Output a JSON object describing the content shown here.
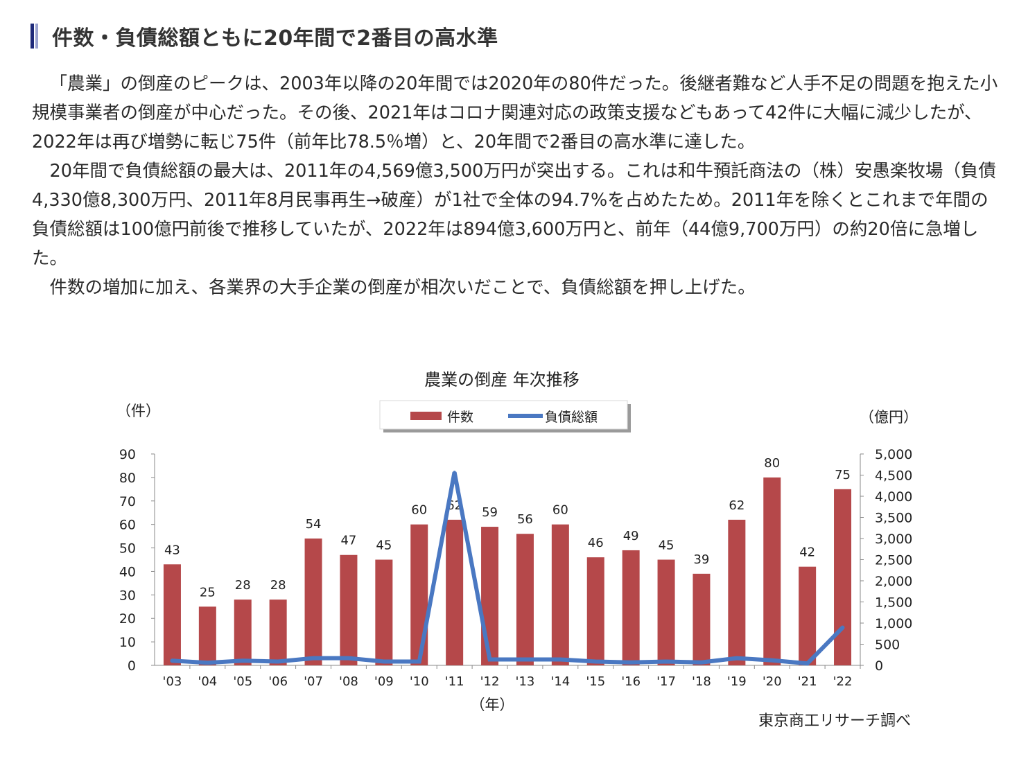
{
  "heading": "件数・負債総額ともに20年間で2番目の高水準",
  "paragraphs": [
    "「農業」の倒産のピークは、2003年以降の20年間では2020年の80件だった。後継者難など人手不足の問題を抱えた小規模事業者の倒産が中心だった。その後、2021年はコロナ関連対応の政策支援などもあって42件に大幅に減少したが、2022年は再び増勢に転じ75件（前年比78.5％増）と、20年間で2番目の高水準に達した。",
    "20年間で負債総額の最大は、2011年の4,569億3,500万円が突出する。これは和牛預託商法の（株）安愚楽牧場（負債4,330億8,300万円、2011年8月民事再生→破産）が1社で全体の94.7%を占めたため。2011年を除くとこれまで年間の負債総額は100億円前後で推移していたが、2022年は894億3,600万円と、前年（44億9,700万円）の約20倍に急増した。",
    "件数の増加に加え、各業界の大手企業の倒産が相次いだことで、負債総額を押し上げた。"
  ],
  "source": "東京商工リサーチ調べ",
  "chart_data": {
    "type": "bar",
    "title": "農業の倒産 年次推移",
    "xlabel": "（年）",
    "ylabel": "（件）",
    "y2label": "（億円）",
    "categories": [
      "'03",
      "'04",
      "'05",
      "'06",
      "'07",
      "'08",
      "'09",
      "'10",
      "'11",
      "'12",
      "'13",
      "'14",
      "'15",
      "'16",
      "'17",
      "'18",
      "'19",
      "'20",
      "'21",
      "'22"
    ],
    "ylim": [
      0,
      90
    ],
    "yticks": [
      "0",
      "10",
      "20",
      "30",
      "40",
      "50",
      "60",
      "70",
      "80",
      "90"
    ],
    "y2lim": [
      0,
      5000
    ],
    "y2ticks": [
      "0",
      "500",
      "1,000",
      "1,500",
      "2,000",
      "2,500",
      "3,000",
      "3,500",
      "4,000",
      "4,500",
      "5,000"
    ],
    "legend_position": "top-center",
    "series": [
      {
        "name": "件数",
        "type": "bar",
        "axis": "left",
        "color": "#b5484a",
        "values": [
          43,
          25,
          28,
          28,
          54,
          47,
          45,
          60,
          62,
          59,
          56,
          60,
          46,
          49,
          45,
          39,
          62,
          80,
          42,
          75
        ]
      },
      {
        "name": "負債総額",
        "type": "line",
        "axis": "right",
        "color": "#4a78c2",
        "values": [
          110,
          60,
          110,
          90,
          170,
          170,
          90,
          90,
          4569,
          140,
          140,
          140,
          90,
          70,
          90,
          70,
          170,
          120,
          45,
          894
        ]
      }
    ]
  }
}
